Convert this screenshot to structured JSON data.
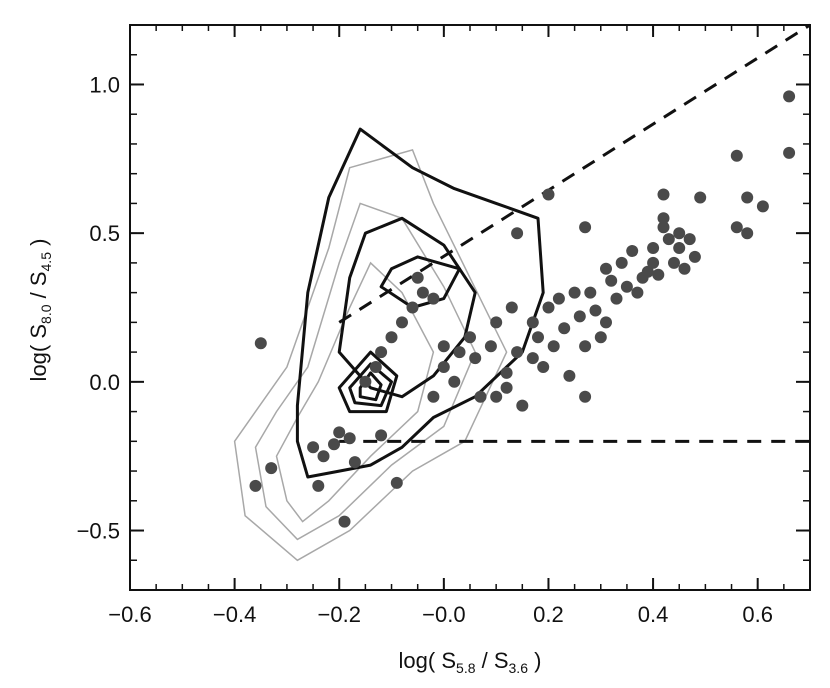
{
  "chart_data": {
    "type": "scatter",
    "title": "",
    "xlabel": {
      "prefix": "log( S",
      "sub1": "5.8",
      "mid": " / S",
      "sub2": "3.6",
      "suffix": " )"
    },
    "ylabel": {
      "prefix": "log( S",
      "sub1": "8.0",
      "mid": " / S",
      "sub2": "4.5",
      "suffix": " )"
    },
    "xlim": [
      -0.6,
      0.7
    ],
    "ylim": [
      -0.7,
      1.2
    ],
    "x_ticks": [
      -0.6,
      -0.4,
      -0.2,
      0.0,
      0.2,
      0.4,
      0.6
    ],
    "x_tick_labels": [
      "−0.6",
      "−0.4",
      "−0.2",
      "−0.0",
      "0.2",
      "0.4",
      "0.6"
    ],
    "y_ticks": [
      -0.5,
      0.0,
      0.5,
      1.0
    ],
    "y_tick_labels": [
      "−0.5",
      "0.0",
      "0.5",
      "1.0"
    ],
    "grid": false,
    "legend": "none",
    "colors": {
      "points": "#4a4a4a",
      "thick_contours": "#111111",
      "thin_contours": "#a8a8a8",
      "dashed_lines": "#111111"
    },
    "dashed_lines": [
      {
        "points": [
          [
            -0.2,
            -0.2
          ],
          [
            0.7,
            -0.2
          ]
        ]
      },
      {
        "points": [
          [
            -0.2,
            0.2
          ],
          [
            0.7,
            1.2
          ]
        ]
      }
    ],
    "points": [
      [
        -0.35,
        0.13
      ],
      [
        -0.36,
        -0.35
      ],
      [
        -0.33,
        -0.29
      ],
      [
        -0.24,
        -0.35
      ],
      [
        -0.19,
        -0.47
      ],
      [
        -0.09,
        -0.34
      ],
      [
        -0.23,
        -0.25
      ],
      [
        -0.21,
        -0.21
      ],
      [
        -0.17,
        -0.27
      ],
      [
        -0.15,
        0.0
      ],
      [
        -0.13,
        0.05
      ],
      [
        -0.12,
        0.1
      ],
      [
        -0.1,
        0.15
      ],
      [
        -0.08,
        0.2
      ],
      [
        -0.06,
        0.25
      ],
      [
        -0.05,
        0.35
      ],
      [
        -0.04,
        0.3
      ],
      [
        -0.02,
        0.28
      ],
      [
        0.0,
        0.12
      ],
      [
        0.0,
        0.05
      ],
      [
        -0.02,
        -0.05
      ],
      [
        0.02,
        0.0
      ],
      [
        0.03,
        0.1
      ],
      [
        0.05,
        0.15
      ],
      [
        0.06,
        0.08
      ],
      [
        0.07,
        -0.05
      ],
      [
        0.09,
        0.12
      ],
      [
        0.1,
        0.2
      ],
      [
        0.12,
        0.03
      ],
      [
        0.13,
        0.25
      ],
      [
        0.14,
        0.5
      ],
      [
        0.1,
        -0.05
      ],
      [
        0.12,
        -0.02
      ],
      [
        0.15,
        -0.08
      ],
      [
        0.17,
        0.08
      ],
      [
        0.18,
        0.15
      ],
      [
        0.2,
        0.25
      ],
      [
        0.19,
        0.05
      ],
      [
        0.21,
        0.12
      ],
      [
        0.22,
        0.28
      ],
      [
        0.23,
        0.18
      ],
      [
        0.24,
        0.02
      ],
      [
        0.25,
        0.3
      ],
      [
        0.26,
        0.22
      ],
      [
        0.27,
        0.12
      ],
      [
        0.27,
        -0.05
      ],
      [
        0.28,
        0.3
      ],
      [
        0.29,
        0.24
      ],
      [
        0.3,
        0.15
      ],
      [
        0.31,
        0.2
      ],
      [
        0.31,
        0.38
      ],
      [
        0.32,
        0.34
      ],
      [
        0.33,
        0.28
      ],
      [
        0.34,
        0.4
      ],
      [
        0.35,
        0.32
      ],
      [
        0.36,
        0.44
      ],
      [
        0.37,
        0.3
      ],
      [
        0.38,
        0.35
      ],
      [
        0.39,
        0.37
      ],
      [
        0.4,
        0.4
      ],
      [
        0.4,
        0.45
      ],
      [
        0.41,
        0.36
      ],
      [
        0.42,
        0.52
      ],
      [
        0.42,
        0.55
      ],
      [
        0.43,
        0.48
      ],
      [
        0.44,
        0.4
      ],
      [
        0.45,
        0.5
      ],
      [
        0.45,
        0.45
      ],
      [
        0.46,
        0.38
      ],
      [
        0.47,
        0.48
      ],
      [
        0.48,
        0.42
      ],
      [
        0.49,
        0.62
      ],
      [
        0.2,
        0.63
      ],
      [
        0.27,
        0.52
      ],
      [
        0.42,
        0.63
      ],
      [
        0.56,
        0.76
      ],
      [
        0.56,
        0.52
      ],
      [
        0.58,
        0.5
      ],
      [
        0.58,
        0.62
      ],
      [
        0.61,
        0.59
      ],
      [
        0.66,
        0.77
      ],
      [
        0.66,
        0.96
      ],
      [
        0.17,
        0.2
      ],
      [
        0.14,
        0.1
      ],
      [
        -0.2,
        -0.17
      ],
      [
        -0.18,
        -0.19
      ],
      [
        -0.12,
        -0.18
      ],
      [
        -0.25,
        -0.22
      ]
    ],
    "thick_contours": [
      [
        [
          -0.28,
          -0.08
        ],
        [
          -0.26,
          0.3
        ],
        [
          -0.22,
          0.62
        ],
        [
          -0.16,
          0.85
        ],
        [
          -0.06,
          0.72
        ],
        [
          0.02,
          0.65
        ],
        [
          0.1,
          0.6
        ],
        [
          0.18,
          0.55
        ],
        [
          0.19,
          0.3
        ],
        [
          0.15,
          0.1
        ],
        [
          0.06,
          -0.05
        ],
        [
          -0.02,
          -0.12
        ],
        [
          -0.08,
          -0.22
        ],
        [
          -0.14,
          -0.28
        ],
        [
          -0.2,
          -0.3
        ],
        [
          -0.26,
          -0.32
        ],
        [
          -0.28,
          -0.2
        ]
      ],
      [
        [
          -0.2,
          0.1
        ],
        [
          -0.18,
          0.35
        ],
        [
          -0.15,
          0.5
        ],
        [
          -0.08,
          0.55
        ],
        [
          0.0,
          0.46
        ],
        [
          0.06,
          0.3
        ],
        [
          0.04,
          0.15
        ],
        [
          -0.02,
          0.02
        ],
        [
          -0.08,
          -0.05
        ],
        [
          -0.14,
          -0.02
        ]
      ],
      [
        [
          -0.1,
          0.38
        ],
        [
          -0.05,
          0.42
        ],
        [
          0.03,
          0.38
        ],
        [
          0.0,
          0.28
        ],
        [
          -0.06,
          0.25
        ],
        [
          -0.12,
          0.32
        ]
      ],
      [
        [
          -0.2,
          -0.02
        ],
        [
          -0.14,
          0.1
        ],
        [
          -0.09,
          0.02
        ],
        [
          -0.11,
          -0.1
        ],
        [
          -0.18,
          -0.1
        ]
      ],
      [
        [
          -0.18,
          -0.02
        ],
        [
          -0.14,
          0.06
        ],
        [
          -0.1,
          0.0
        ],
        [
          -0.12,
          -0.08
        ],
        [
          -0.17,
          -0.07
        ]
      ],
      [
        [
          -0.16,
          -0.02
        ],
        [
          -0.14,
          0.03
        ],
        [
          -0.12,
          -0.01
        ],
        [
          -0.13,
          -0.06
        ],
        [
          -0.16,
          -0.05
        ]
      ]
    ],
    "thin_contours": [
      [
        [
          -0.4,
          -0.2
        ],
        [
          -0.38,
          -0.45
        ],
        [
          -0.28,
          -0.6
        ],
        [
          -0.18,
          -0.5
        ],
        [
          -0.06,
          -0.3
        ],
        [
          0.04,
          -0.2
        ],
        [
          0.12,
          0.1
        ],
        [
          0.05,
          0.35
        ],
        [
          -0.02,
          0.6
        ],
        [
          -0.06,
          0.78
        ],
        [
          -0.18,
          0.72
        ],
        [
          -0.22,
          0.45
        ],
        [
          -0.3,
          0.05
        ],
        [
          -0.36,
          -0.1
        ]
      ],
      [
        [
          -0.36,
          -0.22
        ],
        [
          -0.34,
          -0.42
        ],
        [
          -0.28,
          -0.53
        ],
        [
          -0.2,
          -0.45
        ],
        [
          -0.1,
          -0.28
        ],
        [
          0.0,
          -0.15
        ],
        [
          0.06,
          0.1
        ],
        [
          0.0,
          0.32
        ],
        [
          -0.08,
          0.55
        ],
        [
          -0.16,
          0.6
        ],
        [
          -0.2,
          0.4
        ],
        [
          -0.26,
          0.05
        ],
        [
          -0.32,
          -0.1
        ]
      ],
      [
        [
          -0.32,
          -0.25
        ],
        [
          -0.3,
          -0.4
        ],
        [
          -0.27,
          -0.47
        ],
        [
          -0.22,
          -0.4
        ],
        [
          -0.14,
          -0.25
        ],
        [
          -0.05,
          -0.1
        ],
        [
          -0.02,
          0.1
        ],
        [
          -0.08,
          0.3
        ],
        [
          -0.14,
          0.4
        ],
        [
          -0.18,
          0.25
        ],
        [
          -0.24,
          0.0
        ],
        [
          -0.28,
          -0.12
        ]
      ]
    ]
  }
}
